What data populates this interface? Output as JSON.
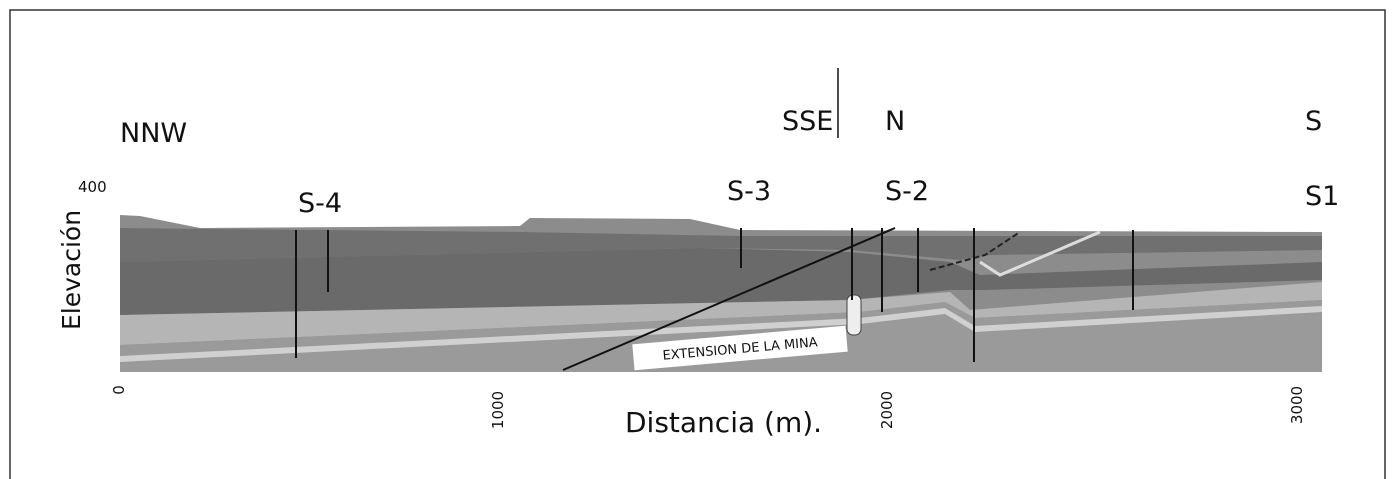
{
  "directions": [
    "NNW",
    "SSE",
    "N",
    "S"
  ],
  "boreholes": [
    "S-4",
    "S-3",
    "S-2",
    "S1"
  ],
  "y_axis": {
    "label": "Elevación",
    "tick": "400"
  },
  "x_axis": {
    "label": "Distancia (m).",
    "ticks": [
      "0",
      "1000",
      "2000",
      "3000"
    ]
  },
  "annotation": "EXTENSION DE LA MINA"
}
